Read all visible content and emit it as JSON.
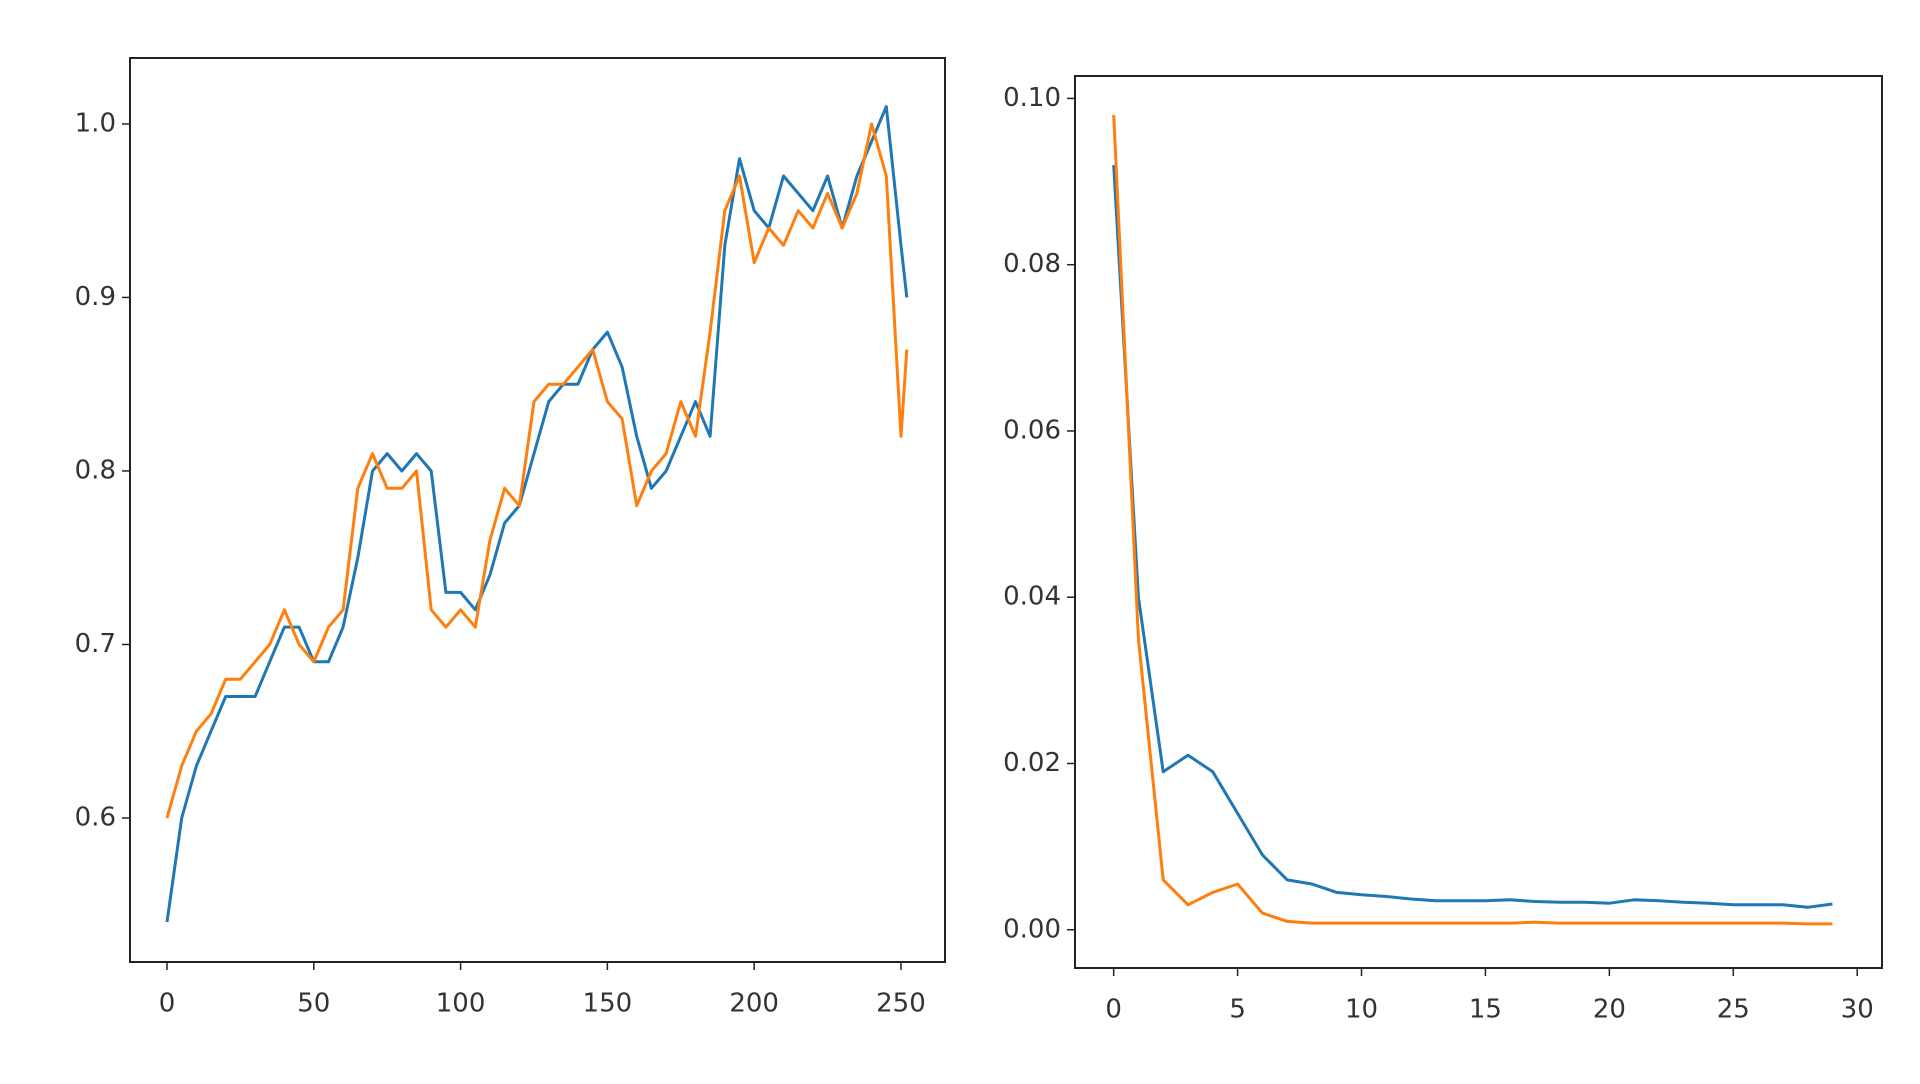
{
  "chart_data": [
    {
      "type": "line",
      "x": [
        0,
        5,
        10,
        15,
        20,
        25,
        30,
        35,
        40,
        45,
        50,
        55,
        60,
        65,
        70,
        75,
        80,
        85,
        90,
        95,
        100,
        105,
        110,
        115,
        120,
        125,
        130,
        135,
        140,
        145,
        150,
        155,
        160,
        165,
        170,
        175,
        180,
        185,
        190,
        195,
        200,
        205,
        210,
        215,
        220,
        225,
        230,
        235,
        240,
        245,
        250,
        252
      ],
      "series": [
        {
          "color": "#1f77b4",
          "values": [
            0.54,
            0.6,
            0.63,
            0.65,
            0.67,
            0.67,
            0.67,
            0.69,
            0.71,
            0.71,
            0.69,
            0.69,
            0.71,
            0.75,
            0.8,
            0.81,
            0.8,
            0.81,
            0.8,
            0.73,
            0.73,
            0.72,
            0.74,
            0.77,
            0.78,
            0.81,
            0.84,
            0.85,
            0.85,
            0.87,
            0.88,
            0.86,
            0.82,
            0.79,
            0.8,
            0.82,
            0.84,
            0.82,
            0.93,
            0.98,
            0.95,
            0.94,
            0.97,
            0.96,
            0.95,
            0.97,
            0.94,
            0.97,
            0.99,
            1.01,
            0.93,
            0.9
          ]
        },
        {
          "color": "#ff7f0e",
          "values": [
            0.6,
            0.63,
            0.65,
            0.66,
            0.68,
            0.68,
            0.69,
            0.7,
            0.72,
            0.7,
            0.69,
            0.71,
            0.72,
            0.79,
            0.81,
            0.79,
            0.79,
            0.8,
            0.72,
            0.71,
            0.72,
            0.71,
            0.76,
            0.79,
            0.78,
            0.84,
            0.85,
            0.85,
            0.86,
            0.87,
            0.84,
            0.83,
            0.78,
            0.8,
            0.81,
            0.84,
            0.82,
            0.88,
            0.95,
            0.97,
            0.92,
            0.94,
            0.93,
            0.95,
            0.94,
            0.96,
            0.94,
            0.96,
            1.0,
            0.97,
            0.82,
            0.87
          ]
        }
      ],
      "xlim": [
        -12.6,
        265
      ],
      "xticks": [
        0,
        50,
        100,
        150,
        200,
        250
      ],
      "ylim": [
        0.517,
        1.038
      ],
      "yticks": [
        0.6,
        0.7,
        0.8,
        0.9,
        {
          "value": 1,
          "label": "1.0"
        }
      ]
    },
    {
      "type": "line",
      "x": [
        0,
        1,
        2,
        3,
        4,
        5,
        6,
        7,
        8,
        9,
        10,
        11,
        12,
        13,
        14,
        15,
        16,
        17,
        18,
        19,
        20,
        21,
        22,
        23,
        24,
        25,
        26,
        27,
        28,
        29
      ],
      "series": [
        {
          "color": "#1f77b4",
          "values": [
            0.092,
            0.04,
            0.019,
            0.021,
            0.019,
            0.014,
            0.009,
            0.006,
            0.0055,
            0.0045,
            0.0042,
            0.004,
            0.0037,
            0.0035,
            0.0035,
            0.0035,
            0.0036,
            0.0034,
            0.0033,
            0.0033,
            0.0032,
            0.0036,
            0.0035,
            0.0033,
            0.0032,
            0.003,
            0.003,
            0.003,
            0.0027,
            0.0031
          ]
        },
        {
          "color": "#ff7f0e",
          "values": [
            0.098,
            0.035,
            0.006,
            0.003,
            0.0045,
            0.0055,
            0.002,
            0.001,
            0.0008,
            0.0008,
            0.0008,
            0.0008,
            0.0008,
            0.0008,
            0.0008,
            0.0008,
            0.0008,
            0.0009,
            0.0008,
            0.0008,
            0.0008,
            0.0008,
            0.0008,
            0.0008,
            0.0008,
            0.0008,
            0.0008,
            0.0008,
            0.0007,
            0.0007
          ]
        }
      ],
      "xlim": [
        -1.56,
        31
      ],
      "xticks": [
        0,
        5,
        10,
        15,
        20,
        25,
        30
      ],
      "ylim": [
        -0.0046,
        0.1027
      ],
      "yticks": [
        {
          "value": 0,
          "label": "0.00"
        },
        0.02,
        0.04,
        0.06,
        0.08,
        {
          "value": 0.1,
          "label": "0.10"
        }
      ]
    }
  ]
}
